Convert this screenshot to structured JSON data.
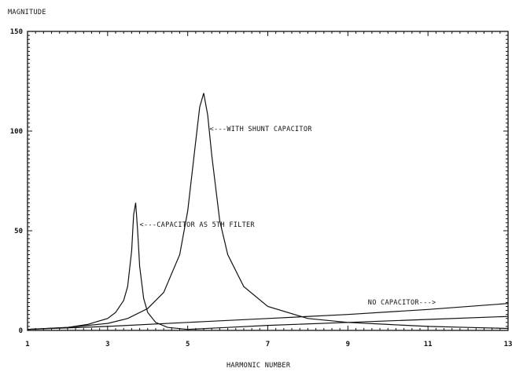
{
  "chart_data": {
    "type": "line",
    "title": "",
    "ylabel": "MAGNITUDE",
    "xlabel": "HARMONIC NUMBER",
    "xlim": [
      1,
      13
    ],
    "ylim": [
      0,
      150
    ],
    "x_ticks": [
      1,
      3,
      5,
      7,
      9,
      11,
      13
    ],
    "y_ticks": [
      0,
      50,
      100,
      150
    ],
    "grid": false,
    "series": [
      {
        "name": "WITH SHUNT CAPACITOR",
        "x": [
          1,
          2,
          3,
          3.5,
          4,
          4.4,
          4.8,
          5.0,
          5.2,
          5.3,
          5.4,
          5.5,
          5.6,
          5.8,
          6.0,
          6.4,
          7,
          8,
          9,
          10,
          11,
          12,
          13
        ],
        "y": [
          0.5,
          1.5,
          3.5,
          6,
          11,
          19,
          38,
          60,
          95,
          112,
          119,
          108,
          88,
          55,
          38,
          22,
          12,
          6,
          4,
          3,
          2,
          1.5,
          1
        ]
      },
      {
        "name": "CAPACITOR AS 5TH FILTER",
        "x": [
          1,
          2,
          2.5,
          3,
          3.2,
          3.4,
          3.5,
          3.6,
          3.65,
          3.7,
          3.75,
          3.8,
          3.9,
          4.0,
          4.2,
          4.5,
          5,
          6,
          7,
          9,
          11,
          13
        ],
        "y": [
          0.5,
          1.5,
          3,
          6,
          9,
          15,
          22,
          40,
          58,
          64,
          50,
          32,
          16,
          9,
          4,
          1.5,
          0.5,
          1.5,
          2.5,
          4,
          5.5,
          7
        ]
      },
      {
        "name": "NO CAPACITOR",
        "x": [
          1,
          3,
          5,
          7,
          9,
          11,
          13
        ],
        "y": [
          0.5,
          2,
          4,
          6,
          8,
          10.5,
          13.5
        ]
      }
    ],
    "annotations": [
      {
        "text": "<---WITH SHUNT CAPACITOR",
        "x": 5.55,
        "y": 100
      },
      {
        "text": "<---CAPACITOR AS 5TH FILTER",
        "x": 3.8,
        "y": 52
      },
      {
        "text": "NO CAPACITOR--->",
        "x": 9.5,
        "y": 13
      }
    ]
  }
}
